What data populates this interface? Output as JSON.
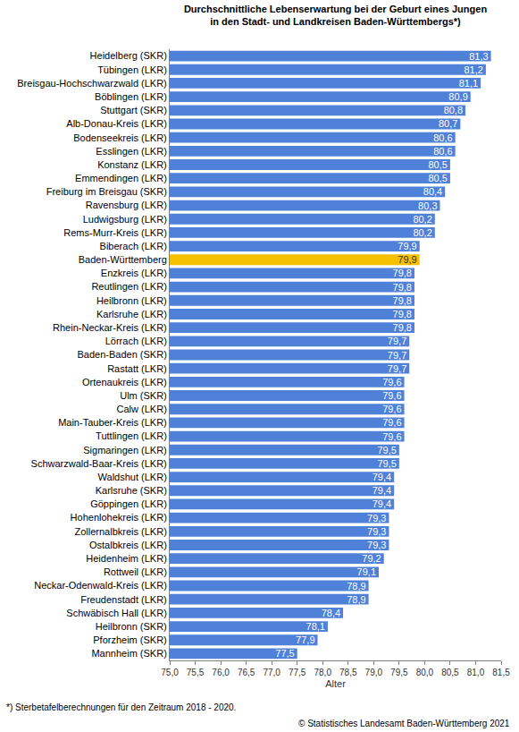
{
  "chart_data": {
    "type": "bar",
    "orientation": "horizontal",
    "title": [
      "Durchschnittliche Lebenserwartung bei der Geburt eines Jungen",
      "in den Stadt- und Landkreisen Baden-Württembergs*)"
    ],
    "x_label": "Alter",
    "annotations": [
      "*) Sterbetafelberechnungen für den Zeitraum 2018 - 2020.",
      "© Statistisches Landesamt Baden-Württemberg 2021"
    ],
    "categories": [
      "Heidelberg (SKR)",
      "Tübingen (LKR)",
      "Breisgau-Hochschwarzwald (LKR)",
      "Böblingen (LKR)",
      "Stuttgart (SKR)",
      "Alb-Donau-Kreis (LKR)",
      "Bodenseekreis (LKR)",
      "Esslingen (LKR)",
      "Konstanz (LKR)",
      "Emmendingen (LKR)",
      "Freiburg im Breisgau (SKR)",
      "Ravensburg (LKR)",
      "Ludwigsburg (LKR)",
      "Rems-Murr-Kreis (LKR)",
      "Biberach (LKR)",
      "Baden-Württemberg",
      "Enzkreis (LKR)",
      "Reutlingen (LKR)",
      "Heilbronn (LKR)",
      "Karlsruhe (LKR)",
      "Rhein-Neckar-Kreis (LKR)",
      "Lörrach (LKR)",
      "Baden-Baden (SKR)",
      "Rastatt (LKR)",
      "Ortenaukreis (LKR)",
      "Ulm (SKR)",
      "Calw (LKR)",
      "Main-Tauber-Kreis (LKR)",
      "Tuttlingen (LKR)",
      "Sigmaringen (LKR)",
      "Schwarzwald-Baar-Kreis (LKR)",
      "Waldshut (LKR)",
      "Karlsruhe (SKR)",
      "Göppingen (LKR)",
      "Hohenlohekreis (LKR)",
      "Zollernalbkreis (LKR)",
      "Ostalbkreis (LKR)",
      "Heidenheim (LKR)",
      "Rottweil (LKR)",
      "Neckar-Odenwald-Kreis (LKR)",
      "Freudenstadt (LKR)",
      "Schwäbisch Hall (LKR)",
      "Heilbronn (SKR)",
      "Pforzheim (SKR)",
      "Mannheim (SKR)"
    ],
    "values": [
      81.3,
      81.2,
      81.1,
      80.9,
      80.8,
      80.7,
      80.6,
      80.6,
      80.5,
      80.5,
      80.4,
      80.3,
      80.2,
      80.2,
      79.9,
      79.9,
      79.8,
      79.8,
      79.8,
      79.8,
      79.8,
      79.7,
      79.7,
      79.7,
      79.6,
      79.6,
      79.6,
      79.6,
      79.6,
      79.5,
      79.5,
      79.4,
      79.4,
      79.4,
      79.3,
      79.3,
      79.3,
      79.2,
      79.1,
      78.9,
      78.9,
      78.4,
      78.1,
      77.9,
      77.5
    ],
    "value_labels": [
      "81,3",
      "81,2",
      "81,1",
      "80,9",
      "80,8",
      "80,7",
      "80,6",
      "80,6",
      "80,5",
      "80,5",
      "80,4",
      "80,3",
      "80,2",
      "80,2",
      "79,9",
      "79,9",
      "79,8",
      "79,8",
      "79,8",
      "79,8",
      "79,8",
      "79,7",
      "79,7",
      "79,7",
      "79,6",
      "79,6",
      "79,6",
      "79,6",
      "79,6",
      "79,5",
      "79,5",
      "79,4",
      "79,4",
      "79,4",
      "79,3",
      "79,3",
      "79,3",
      "79,2",
      "79,1",
      "78,9",
      "78,9",
      "78,4",
      "78,1",
      "77,9",
      "77,5"
    ],
    "colors": [
      "#4f81d9",
      "#4f81d9",
      "#4f81d9",
      "#4f81d9",
      "#4f81d9",
      "#4f81d9",
      "#4f81d9",
      "#4f81d9",
      "#4f81d9",
      "#4f81d9",
      "#4f81d9",
      "#4f81d9",
      "#4f81d9",
      "#4f81d9",
      "#4f81d9",
      "#f5c000",
      "#4f81d9",
      "#4f81d9",
      "#4f81d9",
      "#4f81d9",
      "#4f81d9",
      "#4f81d9",
      "#4f81d9",
      "#4f81d9",
      "#4f81d9",
      "#4f81d9",
      "#4f81d9",
      "#4f81d9",
      "#4f81d9",
      "#4f81d9",
      "#4f81d9",
      "#4f81d9",
      "#4f81d9",
      "#4f81d9",
      "#4f81d9",
      "#4f81d9",
      "#4f81d9",
      "#4f81d9",
      "#4f81d9",
      "#4f81d9",
      "#4f81d9",
      "#4f81d9",
      "#4f81d9",
      "#4f81d9",
      "#4f81d9"
    ],
    "data_labels": true,
    "xlim": [
      75.0,
      81.5
    ],
    "xticks": [
      {
        "value": 75.0,
        "label": "75,0"
      },
      {
        "value": 75.5,
        "label": "75,5"
      },
      {
        "value": 76.0,
        "label": "76,0"
      },
      {
        "value": 76.5,
        "label": "76,5"
      },
      {
        "value": 77.0,
        "label": "77,0"
      },
      {
        "value": 77.5,
        "label": "77,5"
      },
      {
        "value": 78.0,
        "label": "78,0"
      },
      {
        "value": 78.5,
        "label": "78,5"
      },
      {
        "value": 79.0,
        "label": "79,0"
      },
      {
        "value": 79.5,
        "label": "79,5"
      },
      {
        "value": 80.0,
        "label": "80,0"
      },
      {
        "value": 80.5,
        "label": "80,5"
      },
      {
        "value": 81.0,
        "label": "81,0"
      },
      {
        "value": 81.5,
        "label": "81,5"
      }
    ],
    "grid": false
  }
}
